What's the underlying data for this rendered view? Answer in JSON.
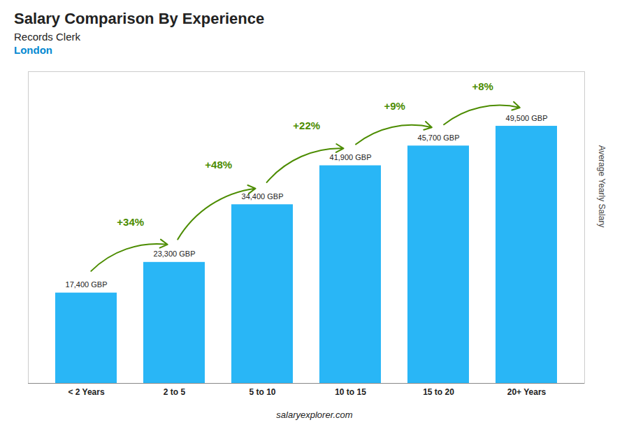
{
  "chart_data": {
    "type": "bar",
    "title": "Salary Comparison By Experience",
    "subtitle": [
      "Records Clerk",
      "London"
    ],
    "ylabel": "Average Yearly Salary",
    "caption": "salaryexplorer.com",
    "categories": [
      "< 2 Years",
      "2 to 5",
      "5 to 10",
      "10 to 15",
      "15 to 20",
      "20+ Years"
    ],
    "values": [
      17400,
      23300,
      34400,
      41900,
      45700,
      49500
    ],
    "value_labels": [
      "17,400 GBP",
      "23,300 GBP",
      "34,400 GBP",
      "41,900 GBP",
      "45,700 GBP",
      "49,500 GBP"
    ],
    "data_labels": true,
    "color": "#29b6f6",
    "ylim": [
      0,
      60000
    ],
    "tick_labels": "x",
    "annotations": [
      {
        "text": "+34%",
        "x": [
          "< 2 Years",
          "2 to 5"
        ]
      },
      {
        "text": "+48%",
        "x": [
          "2 to 5",
          "5 to 10"
        ]
      },
      {
        "text": "+22%",
        "x": [
          "5 to 10",
          "10 to 15"
        ]
      },
      {
        "text": "+9%",
        "x": [
          "10 to 15",
          "15 to 20"
        ]
      },
      {
        "text": "+8%",
        "x": [
          "15 to 20",
          "20+ Years"
        ]
      }
    ]
  }
}
